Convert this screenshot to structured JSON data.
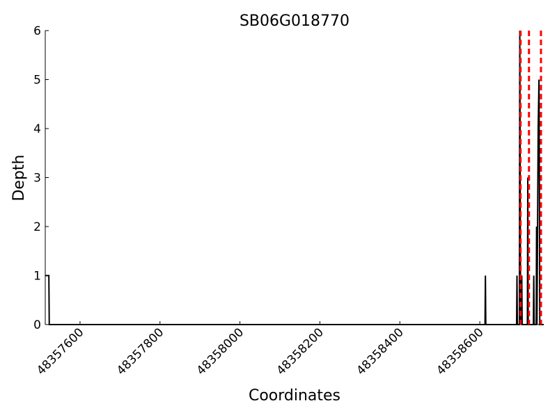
{
  "chart_data": {
    "type": "line",
    "title": "SB06G018770",
    "x_label": "Coordinates",
    "y_label": "Depth",
    "series": [
      {
        "color": "#000000",
        "x": [
          48357513,
          48357522,
          48357523,
          48358613,
          48358614,
          48358615,
          48358692,
          48358693,
          48358694,
          48358699,
          48358700,
          48358701,
          48358702,
          48358705,
          48358706,
          48358719,
          48358720,
          48358721,
          48358734,
          48358735,
          48358736,
          48358741,
          48358742,
          48358743,
          48358746,
          48358748,
          48358749,
          48358750,
          48358760
        ],
        "values": [
          1,
          1,
          0,
          0,
          1,
          0,
          0,
          1,
          0,
          0,
          6,
          3,
          0,
          1,
          0,
          0,
          3,
          0,
          0,
          1,
          0,
          0,
          2,
          0,
          4,
          5,
          3,
          0,
          0
        ]
      }
    ],
    "vlines": {
      "x": [
        48358702,
        48358723,
        48358753
      ],
      "color": "#ff0000"
    },
    "xlim": [
      48357513,
      48358760
    ],
    "ylim": [
      0,
      6
    ],
    "xticks": [
      48357600,
      48357800,
      48358000,
      48358200,
      48358400,
      48358600
    ],
    "yticks": [
      0,
      1,
      2,
      3,
      4,
      5,
      6
    ]
  }
}
